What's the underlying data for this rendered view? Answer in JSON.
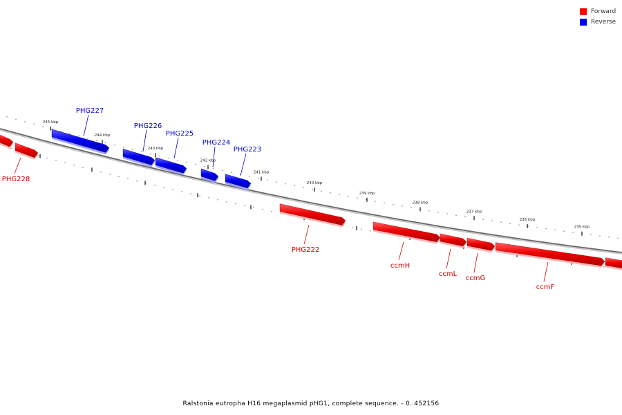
{
  "legend": {
    "forward_label": "Forward",
    "reverse_label": "Reverse",
    "forward_color": "#ff0000",
    "reverse_color": "#0000ff"
  },
  "caption": "Ralstonia eutropha H16 megaplasmid pHG1, complete sequence. - 0..452156",
  "ticks": [
    "245 kbp",
    "244 kbp",
    "243 kbp",
    "242 kbp",
    "241 kbp",
    "240 kbp",
    "239 kbp",
    "238 kbp",
    "237 kbp",
    "236 kbp",
    "235 kbp"
  ],
  "genes": [
    {
      "name": "PHG228",
      "strand": "forward"
    },
    {
      "name": "PHG227",
      "strand": "reverse"
    },
    {
      "name": "PHG226",
      "strand": "reverse"
    },
    {
      "name": "PHG225",
      "strand": "reverse"
    },
    {
      "name": "PHG224",
      "strand": "reverse"
    },
    {
      "name": "PHG223",
      "strand": "reverse"
    },
    {
      "name": "PHG222",
      "strand": "forward"
    },
    {
      "name": "ccmH",
      "strand": "forward"
    },
    {
      "name": "ccmL",
      "strand": "forward"
    },
    {
      "name": "ccmG",
      "strand": "forward"
    },
    {
      "name": "ccmF",
      "strand": "forward"
    }
  ]
}
